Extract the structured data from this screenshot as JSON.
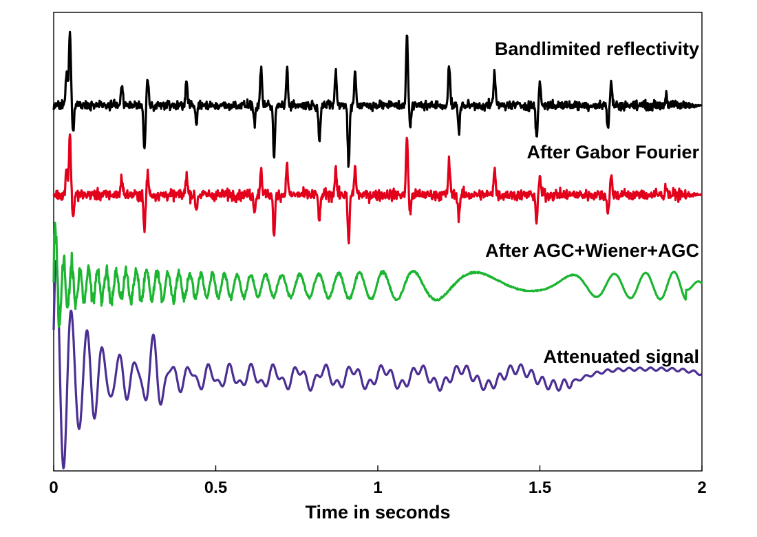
{
  "chart_data": {
    "type": "line",
    "xlabel": "Time in seconds",
    "xlim": [
      0,
      2
    ],
    "xticks": [
      "0",
      "0.5",
      "1",
      "1.5",
      "2"
    ],
    "y_axis": "none",
    "grid": false,
    "legend": "none",
    "series": [
      {
        "name": "Bandlimited reflectivity",
        "color": "#000000",
        "character": "sparse sharp spikes of roughly constant amplitude throughout the record",
        "spikes": [
          {
            "t": 0.05,
            "amp": 1.0
          },
          {
            "t": 0.06,
            "amp": -0.35
          },
          {
            "t": 0.04,
            "amp": 0.45
          },
          {
            "t": 0.28,
            "amp": -0.6
          },
          {
            "t": 0.29,
            "amp": 0.35
          },
          {
            "t": 0.21,
            "amp": 0.3
          },
          {
            "t": 0.41,
            "amp": 0.35
          },
          {
            "t": 0.44,
            "amp": -0.25
          },
          {
            "t": 0.62,
            "amp": -0.25
          },
          {
            "t": 0.64,
            "amp": 0.45
          },
          {
            "t": 0.68,
            "amp": -0.7
          },
          {
            "t": 0.72,
            "amp": 0.5
          },
          {
            "t": 0.82,
            "amp": -0.45
          },
          {
            "t": 0.87,
            "amp": 0.45
          },
          {
            "t": 0.91,
            "amp": -0.8
          },
          {
            "t": 0.93,
            "amp": 0.45
          },
          {
            "t": 1.09,
            "amp": 0.95
          },
          {
            "t": 1.1,
            "amp": -0.3
          },
          {
            "t": 1.22,
            "amp": 0.55
          },
          {
            "t": 1.25,
            "amp": -0.35
          },
          {
            "t": 1.36,
            "amp": 0.45
          },
          {
            "t": 1.49,
            "amp": -0.45
          },
          {
            "t": 1.5,
            "amp": 0.3
          },
          {
            "t": 1.71,
            "amp": -0.3
          },
          {
            "t": 1.72,
            "amp": 0.3
          },
          {
            "t": 1.89,
            "amp": 0.15
          }
        ]
      },
      {
        "name": "After Gabor  Fourier",
        "color": "#e3001b",
        "character": "deconvolved trace, spikes recovered with moderate background noise"
      },
      {
        "name": "After AGC+Wiener+AGC",
        "color": "#1cb531",
        "character": "high-frequency noise at early times, lower-frequency oscillations at late times"
      },
      {
        "name": "Attenuated signal",
        "color": "#4b2f93",
        "character": "strong ringing at early times decaying to a small oscillation later"
      }
    ]
  }
}
